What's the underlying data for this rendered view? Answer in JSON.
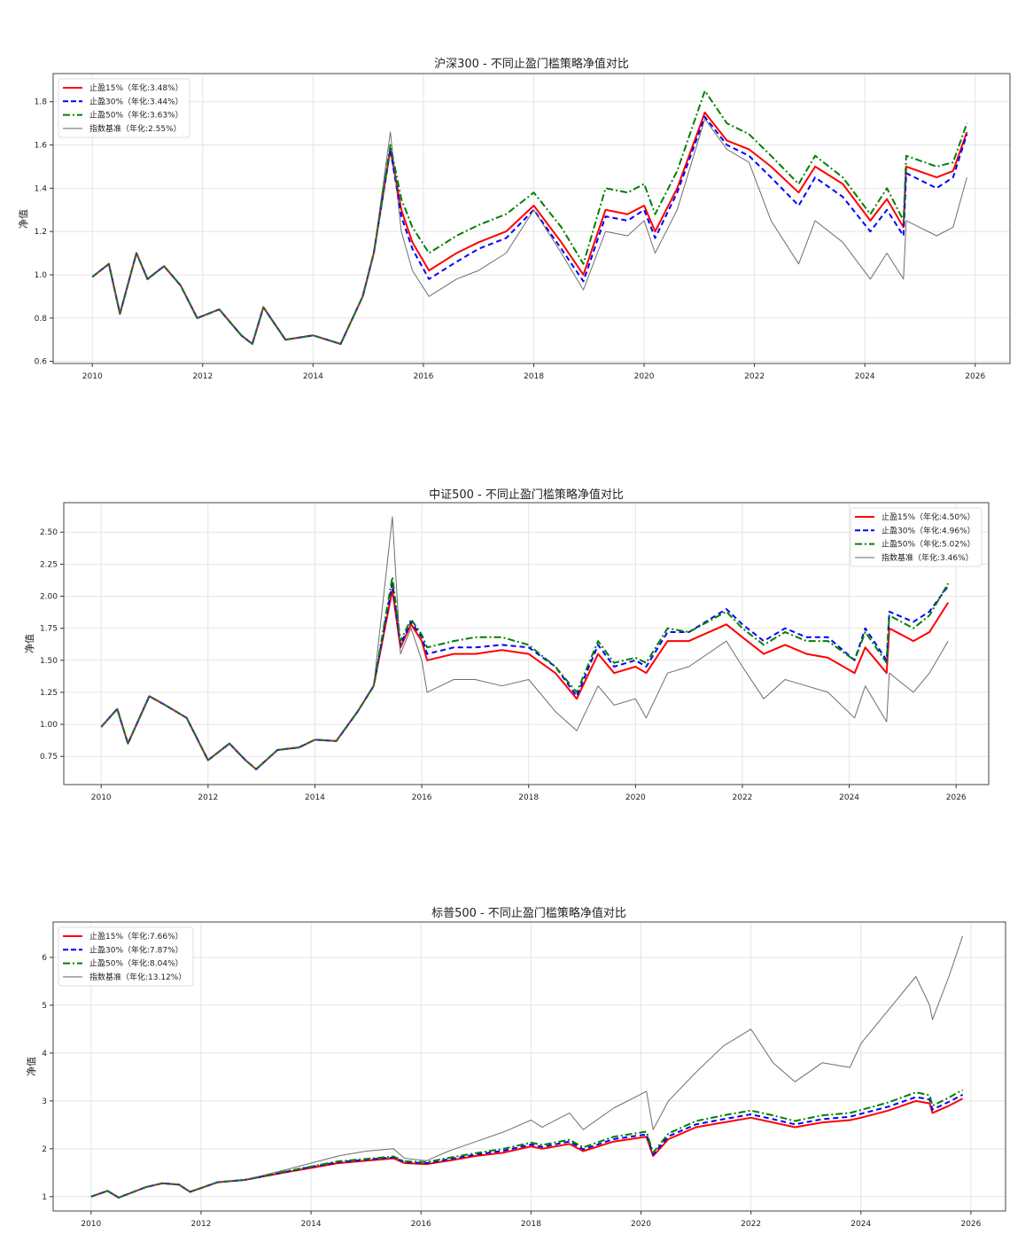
{
  "chart_data": [
    {
      "type": "line",
      "title": "沪深300 - 不同止盈门槛策略净值对比",
      "xlabel": "",
      "ylabel": "净值",
      "xlim": [
        2009.29,
        2026.63
      ],
      "ylim": [
        0.59,
        1.93
      ],
      "xticks": [
        2010,
        2012,
        2014,
        2016,
        2018,
        2020,
        2022,
        2024,
        2026
      ],
      "yticks": [
        0.6,
        0.8,
        1.0,
        1.2,
        1.4,
        1.6,
        1.8
      ],
      "ytick_decimals": 1,
      "grid": true,
      "legend_position": "top-left",
      "x": [
        2010.0,
        2010.3,
        2010.5,
        2010.8,
        2011.0,
        2011.3,
        2011.6,
        2011.9,
        2012.3,
        2012.7,
        2012.9,
        2013.1,
        2013.5,
        2014.0,
        2014.5,
        2014.9,
        2015.1,
        2015.4,
        2015.6,
        2015.8,
        2016.1,
        2016.6,
        2017.0,
        2017.5,
        2018.0,
        2018.5,
        2018.9,
        2019.3,
        2019.7,
        2020.0,
        2020.2,
        2020.6,
        2021.1,
        2021.5,
        2021.9,
        2022.3,
        2022.8,
        2023.1,
        2023.6,
        2024.1,
        2024.4,
        2024.7,
        2024.75,
        2025.3,
        2025.6,
        2025.85
      ],
      "series": [
        {
          "name": "止盈15%（年化:3.48%）",
          "color": "#ff0000",
          "style": "solid",
          "values": [
            0.99,
            1.05,
            0.82,
            1.1,
            0.98,
            1.04,
            0.95,
            0.8,
            0.84,
            0.72,
            0.68,
            0.85,
            0.7,
            0.72,
            0.68,
            0.9,
            1.1,
            1.58,
            1.3,
            1.15,
            1.02,
            1.1,
            1.15,
            1.2,
            1.32,
            1.15,
            1.0,
            1.3,
            1.28,
            1.32,
            1.2,
            1.4,
            1.75,
            1.62,
            1.58,
            1.5,
            1.38,
            1.5,
            1.42,
            1.25,
            1.35,
            1.22,
            1.5,
            1.45,
            1.48,
            1.66
          ]
        },
        {
          "name": "止盈30%（年化:3.44%）",
          "color": "#0000ff",
          "style": "dashed",
          "values": [
            0.99,
            1.05,
            0.82,
            1.1,
            0.98,
            1.04,
            0.95,
            0.8,
            0.84,
            0.72,
            0.68,
            0.85,
            0.7,
            0.72,
            0.68,
            0.9,
            1.1,
            1.58,
            1.27,
            1.12,
            0.98,
            1.06,
            1.12,
            1.17,
            1.3,
            1.12,
            0.97,
            1.27,
            1.25,
            1.3,
            1.17,
            1.38,
            1.73,
            1.6,
            1.55,
            1.45,
            1.32,
            1.45,
            1.36,
            1.2,
            1.3,
            1.18,
            1.47,
            1.4,
            1.45,
            1.65
          ]
        },
        {
          "name": "止盈50%（年化:3.63%）",
          "color": "#008000",
          "style": "dashdot",
          "values": [
            0.99,
            1.05,
            0.82,
            1.1,
            0.98,
            1.04,
            0.95,
            0.8,
            0.84,
            0.72,
            0.68,
            0.85,
            0.7,
            0.72,
            0.68,
            0.9,
            1.1,
            1.6,
            1.35,
            1.22,
            1.1,
            1.18,
            1.23,
            1.28,
            1.38,
            1.22,
            1.05,
            1.4,
            1.38,
            1.42,
            1.28,
            1.48,
            1.85,
            1.7,
            1.65,
            1.55,
            1.42,
            1.55,
            1.45,
            1.28,
            1.4,
            1.25,
            1.55,
            1.5,
            1.52,
            1.7
          ]
        },
        {
          "name": "指数基准（年化:2.55%）",
          "color": "#555555",
          "style": "thin",
          "values": [
            0.99,
            1.05,
            0.82,
            1.1,
            0.98,
            1.04,
            0.95,
            0.8,
            0.84,
            0.72,
            0.68,
            0.85,
            0.7,
            0.72,
            0.68,
            0.9,
            1.1,
            1.66,
            1.2,
            1.02,
            0.9,
            0.98,
            1.02,
            1.1,
            1.3,
            1.1,
            0.93,
            1.2,
            1.18,
            1.25,
            1.1,
            1.3,
            1.72,
            1.58,
            1.52,
            1.25,
            1.05,
            1.25,
            1.15,
            0.98,
            1.1,
            0.98,
            1.25,
            1.18,
            1.22,
            1.45
          ]
        }
      ]
    },
    {
      "type": "line",
      "title": "中证500 - 不同止盈门槛策略净值对比",
      "xlabel": "",
      "ylabel": "净值",
      "xlim": [
        2009.3,
        2026.61
      ],
      "ylim": [
        0.53,
        2.73
      ],
      "xticks": [
        2010,
        2012,
        2014,
        2016,
        2018,
        2020,
        2022,
        2024,
        2026
      ],
      "yticks": [
        0.75,
        1.0,
        1.25,
        1.5,
        1.75,
        2.0,
        2.25,
        2.5
      ],
      "ytick_decimals": 2,
      "grid": true,
      "legend_position": "top-right",
      "x": [
        2010.0,
        2010.3,
        2010.5,
        2010.9,
        2011.2,
        2011.6,
        2012.0,
        2012.4,
        2012.7,
        2012.9,
        2013.3,
        2013.7,
        2014.0,
        2014.4,
        2014.8,
        2015.1,
        2015.45,
        2015.6,
        2015.8,
        2016.0,
        2016.1,
        2016.6,
        2017.0,
        2017.5,
        2018.0,
        2018.5,
        2018.9,
        2019.3,
        2019.6,
        2020.0,
        2020.2,
        2020.6,
        2021.0,
        2021.7,
        2022.0,
        2022.4,
        2022.8,
        2023.2,
        2023.6,
        2024.1,
        2024.3,
        2024.7,
        2024.75,
        2025.2,
        2025.5,
        2025.85
      ],
      "series": [
        {
          "name": "止盈15%（年化:4.50%）",
          "color": "#ff0000",
          "style": "solid",
          "values": [
            0.98,
            1.12,
            0.85,
            1.22,
            1.15,
            1.05,
            0.72,
            0.85,
            0.72,
            0.65,
            0.8,
            0.82,
            0.88,
            0.87,
            1.1,
            1.3,
            2.05,
            1.6,
            1.78,
            1.65,
            1.5,
            1.55,
            1.55,
            1.58,
            1.55,
            1.4,
            1.2,
            1.55,
            1.4,
            1.45,
            1.4,
            1.65,
            1.65,
            1.78,
            1.68,
            1.55,
            1.62,
            1.55,
            1.52,
            1.4,
            1.6,
            1.4,
            1.75,
            1.65,
            1.72,
            1.95
          ]
        },
        {
          "name": "止盈30%（年化:4.96%）",
          "color": "#0000ff",
          "style": "dashed",
          "values": [
            0.98,
            1.12,
            0.85,
            1.22,
            1.15,
            1.05,
            0.72,
            0.85,
            0.72,
            0.65,
            0.8,
            0.82,
            0.88,
            0.87,
            1.1,
            1.3,
            2.1,
            1.62,
            1.8,
            1.68,
            1.55,
            1.6,
            1.6,
            1.62,
            1.6,
            1.45,
            1.22,
            1.62,
            1.45,
            1.5,
            1.45,
            1.72,
            1.72,
            1.9,
            1.78,
            1.65,
            1.75,
            1.68,
            1.68,
            1.5,
            1.75,
            1.5,
            1.88,
            1.8,
            1.88,
            2.08
          ]
        },
        {
          "name": "止盈50%（年化:5.02%）",
          "color": "#008000",
          "style": "dashdot",
          "values": [
            0.98,
            1.12,
            0.85,
            1.22,
            1.15,
            1.05,
            0.72,
            0.85,
            0.72,
            0.65,
            0.8,
            0.82,
            0.88,
            0.87,
            1.1,
            1.3,
            2.15,
            1.65,
            1.82,
            1.7,
            1.6,
            1.65,
            1.68,
            1.68,
            1.62,
            1.45,
            1.25,
            1.65,
            1.48,
            1.52,
            1.48,
            1.75,
            1.72,
            1.88,
            1.75,
            1.62,
            1.72,
            1.65,
            1.65,
            1.5,
            1.72,
            1.48,
            1.85,
            1.75,
            1.85,
            2.1
          ]
        },
        {
          "name": "指数基准（年化:3.46%）",
          "color": "#555555",
          "style": "thin",
          "values": [
            0.98,
            1.12,
            0.85,
            1.22,
            1.15,
            1.05,
            0.72,
            0.85,
            0.72,
            0.65,
            0.8,
            0.82,
            0.88,
            0.87,
            1.1,
            1.3,
            2.62,
            1.55,
            1.75,
            1.5,
            1.25,
            1.35,
            1.35,
            1.3,
            1.35,
            1.1,
            0.95,
            1.3,
            1.15,
            1.2,
            1.05,
            1.4,
            1.45,
            1.65,
            1.45,
            1.2,
            1.35,
            1.3,
            1.25,
            1.05,
            1.3,
            1.02,
            1.4,
            1.25,
            1.4,
            1.65
          ]
        }
      ]
    },
    {
      "type": "line",
      "title": "标普500 - 不同止盈门槛策略净值对比",
      "xlabel": "",
      "ylabel": "净值",
      "xlim": [
        2009.31,
        2026.63
      ],
      "ylim": [
        0.7,
        6.74
      ],
      "xticks": [
        2010,
        2012,
        2014,
        2016,
        2018,
        2020,
        2022,
        2024,
        2026
      ],
      "yticks": [
        1,
        2,
        3,
        4,
        5,
        6
      ],
      "ytick_decimals": 0,
      "grid": true,
      "legend_position": "top-left",
      "x": [
        2010.0,
        2010.3,
        2010.5,
        2011.0,
        2011.3,
        2011.6,
        2011.8,
        2012.3,
        2012.8,
        2013.5,
        2014.0,
        2014.5,
        2015.0,
        2015.5,
        2015.7,
        2016.1,
        2016.5,
        2017.0,
        2017.5,
        2018.0,
        2018.2,
        2018.7,
        2018.95,
        2019.5,
        2020.1,
        2020.22,
        2020.5,
        2021.0,
        2021.5,
        2022.0,
        2022.4,
        2022.8,
        2023.3,
        2023.8,
        2024.0,
        2024.5,
        2025.0,
        2025.25,
        2025.3,
        2025.6,
        2025.85
      ],
      "series": [
        {
          "name": "止盈15%（年化:7.66%）",
          "color": "#ff0000",
          "style": "solid",
          "values": [
            1.0,
            1.12,
            0.98,
            1.2,
            1.28,
            1.25,
            1.1,
            1.3,
            1.35,
            1.5,
            1.6,
            1.7,
            1.75,
            1.8,
            1.7,
            1.68,
            1.75,
            1.85,
            1.92,
            2.05,
            2.0,
            2.1,
            1.95,
            2.15,
            2.25,
            1.85,
            2.2,
            2.45,
            2.55,
            2.65,
            2.55,
            2.45,
            2.55,
            2.6,
            2.65,
            2.8,
            3.0,
            2.95,
            2.75,
            2.9,
            3.05
          ]
        },
        {
          "name": "止盈30%（年化:7.87%）",
          "color": "#0000ff",
          "style": "dashed",
          "values": [
            1.0,
            1.12,
            0.98,
            1.2,
            1.28,
            1.25,
            1.1,
            1.3,
            1.35,
            1.51,
            1.62,
            1.72,
            1.77,
            1.82,
            1.72,
            1.7,
            1.78,
            1.88,
            1.96,
            2.09,
            2.04,
            2.15,
            1.99,
            2.2,
            2.3,
            1.88,
            2.26,
            2.51,
            2.62,
            2.72,
            2.62,
            2.51,
            2.62,
            2.67,
            2.73,
            2.88,
            3.08,
            3.03,
            2.82,
            2.98,
            3.13
          ]
        },
        {
          "name": "止盈50%（年化:8.04%）",
          "color": "#008000",
          "style": "dashdot",
          "values": [
            1.0,
            1.12,
            0.98,
            1.2,
            1.28,
            1.25,
            1.1,
            1.3,
            1.35,
            1.52,
            1.63,
            1.74,
            1.79,
            1.84,
            1.74,
            1.72,
            1.81,
            1.91,
            2.0,
            2.13,
            2.08,
            2.19,
            2.03,
            2.25,
            2.36,
            1.92,
            2.32,
            2.58,
            2.7,
            2.8,
            2.7,
            2.58,
            2.7,
            2.75,
            2.81,
            2.97,
            3.18,
            3.12,
            2.9,
            3.07,
            3.23
          ]
        },
        {
          "name": "指数基准（年化:13.12%）",
          "color": "#555555",
          "style": "thin",
          "values": [
            1.0,
            1.12,
            0.98,
            1.2,
            1.28,
            1.25,
            1.1,
            1.3,
            1.35,
            1.55,
            1.7,
            1.85,
            1.95,
            2.0,
            1.8,
            1.75,
            1.95,
            2.15,
            2.35,
            2.6,
            2.45,
            2.75,
            2.4,
            2.85,
            3.2,
            2.4,
            3.0,
            3.6,
            4.15,
            4.5,
            3.8,
            3.4,
            3.8,
            3.7,
            4.2,
            4.9,
            5.6,
            5.0,
            4.7,
            5.6,
            6.45
          ]
        }
      ]
    }
  ]
}
